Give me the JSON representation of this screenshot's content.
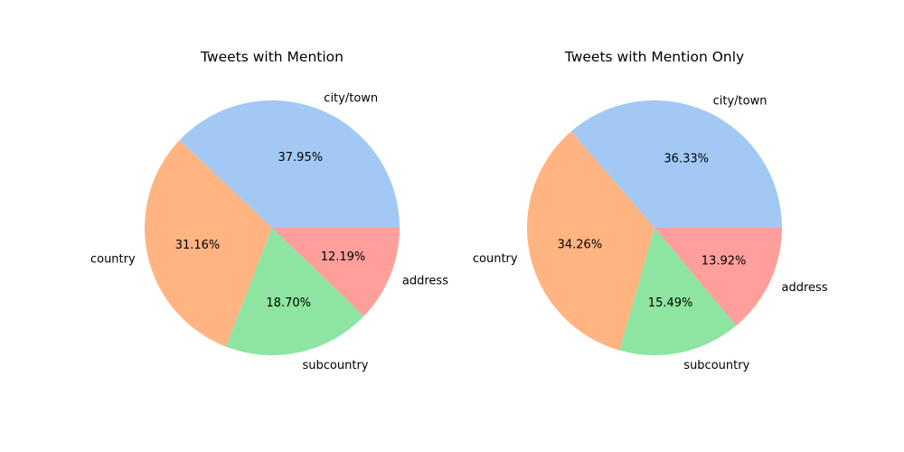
{
  "chart_data": [
    {
      "type": "pie",
      "title": "Tweets with Mention",
      "labels": [
        "city/town",
        "country",
        "subcountry",
        "address"
      ],
      "values": [
        37.95,
        31.16,
        18.7,
        12.19
      ],
      "value_labels": [
        "37.95%",
        "31.16%",
        "18.70%",
        "12.19%"
      ],
      "colors": [
        "#a1c9f4",
        "#ffb482",
        "#8de5a1",
        "#ff9f9b"
      ],
      "start_angle_deg": 0,
      "direction": "counterclockwise"
    },
    {
      "type": "pie",
      "title": "Tweets with Mention Only",
      "labels": [
        "city/town",
        "country",
        "subcountry",
        "address"
      ],
      "values": [
        36.33,
        34.26,
        15.49,
        13.92
      ],
      "value_labels": [
        "36.33%",
        "34.26%",
        "15.49%",
        "13.92%"
      ],
      "colors": [
        "#a1c9f4",
        "#ffb482",
        "#8de5a1",
        "#ff9f9b"
      ],
      "start_angle_deg": 0,
      "direction": "counterclockwise"
    }
  ]
}
